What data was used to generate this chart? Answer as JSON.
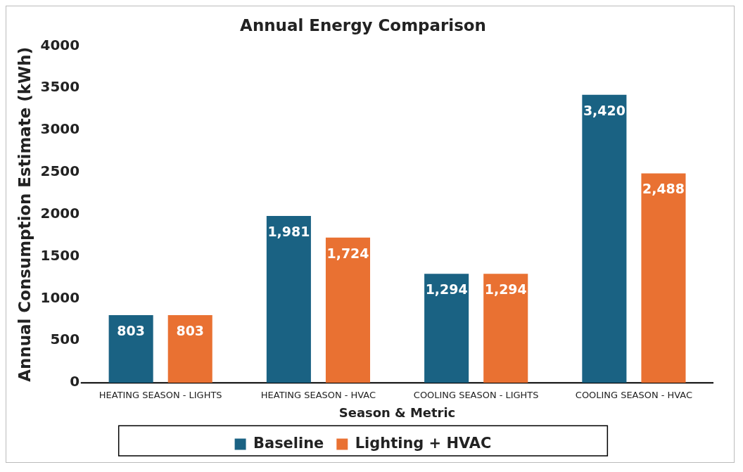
{
  "chart_data": {
    "type": "bar",
    "title": "Annual Energy Comparison",
    "xlabel": "Season & Metric",
    "ylabel": "Annual Consumption Estimate (kWh)",
    "categories": [
      "HEATING SEASON - LIGHTS",
      "HEATING SEASON - HVAC",
      "COOLING SEASON - LIGHTS",
      "COOLING SEASON - HVAC"
    ],
    "series": [
      {
        "name": "Baseline",
        "color": "#1a6283",
        "values": [
          803,
          1981,
          1294,
          3420
        ],
        "value_labels": [
          "803",
          "1,981",
          "1,294",
          "3,420"
        ]
      },
      {
        "name": "Lighting + HVAC",
        "color": "#e97132",
        "values": [
          803,
          1724,
          1294,
          2488
        ],
        "value_labels": [
          "803",
          "1,724",
          "1,294",
          "2,488"
        ]
      }
    ],
    "ylim": [
      0,
      4000
    ],
    "yticks": [
      0,
      500,
      1000,
      1500,
      2000,
      2500,
      3000,
      3500,
      4000
    ],
    "grid": false,
    "legend": "bottom"
  }
}
